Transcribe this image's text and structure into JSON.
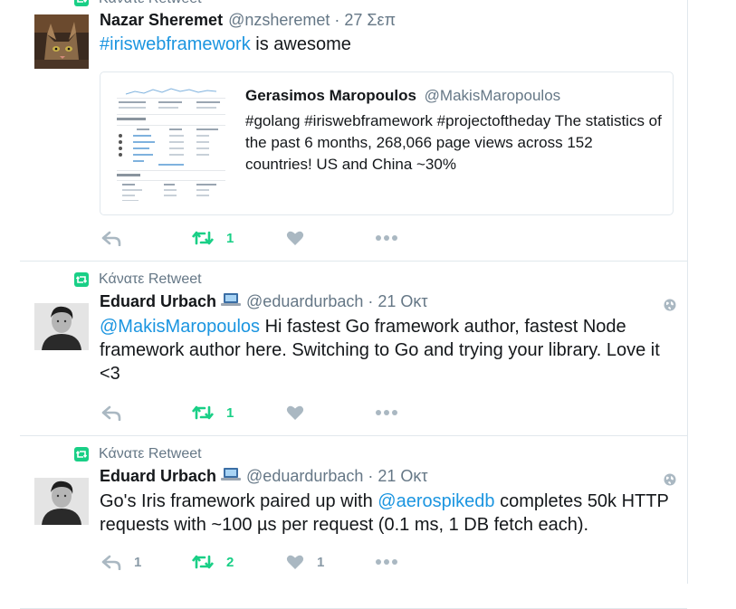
{
  "tweets": [
    {
      "retweet_label": "Κάνατε Retweet",
      "name": "Nazar Sheremet",
      "handle": "@nzsheremet",
      "sep": "·",
      "time": "27 Σεπ",
      "text_link": "#iriswebframework",
      "text_rest": " is awesome",
      "quote": {
        "name": "Gerasimos Maropoulos",
        "handle": "@MakisMaropoulos",
        "text": "#golang #iriswebframework #projectoftheday The statistics of the past 6 months, 268,066 page views across 152 countries! US and China ~30%"
      },
      "retweets": "1"
    },
    {
      "retweet_label": "Κάνατε Retweet",
      "name": "Eduard Urbach",
      "handle": "@eduardurbach",
      "sep": "·",
      "time": "21 Οκτ",
      "text_link": "@MakisMaropoulos",
      "text_rest": " Hi fastest Go framework author, fastest Node framework author here. Switching to Go and trying your library. Love it <3",
      "retweets": "1"
    },
    {
      "retweet_label": "Κάνατε Retweet",
      "name": "Eduard Urbach",
      "handle": "@eduardurbach",
      "sep": "·",
      "time": "21 Οκτ",
      "text_pre": "Go's Iris framework paired up with ",
      "text_link": "@aerospikedb",
      "text_rest": " completes 50k HTTP requests with ~100 µs per request (0.1 ms, 1 DB fetch each).",
      "replies": "1",
      "retweets": "2",
      "likes": "1"
    }
  ],
  "icons": {
    "reply": "reply-icon",
    "retweet": "retweet-icon",
    "like": "heart-icon",
    "more": "more-icon",
    "globe": "globe-icon",
    "laptop": "laptop-icon"
  },
  "colors": {
    "retweet_green": "#19cf86",
    "link_blue": "#1b95e0",
    "muted": "#657786",
    "action_gray": "#aab8c2"
  }
}
